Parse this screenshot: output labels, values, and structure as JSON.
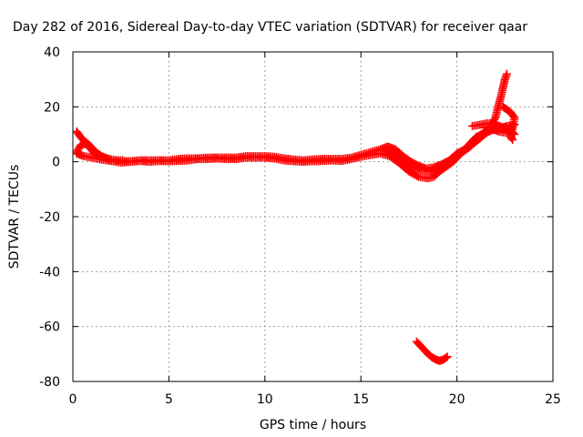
{
  "chart_data": {
    "type": "scatter",
    "title": "Day 282 of 2016, Sidereal Day-to-day VTEC variation (SDTVAR) for receiver qaar",
    "xlabel": "GPS time / hours",
    "ylabel": "SDTVAR / TECUs",
    "xlim": [
      0,
      25
    ],
    "ylim": [
      -80,
      40
    ],
    "xticks": [
      0,
      5,
      10,
      15,
      20,
      25
    ],
    "yticks": [
      -80,
      -60,
      -40,
      -20,
      0,
      20,
      40
    ],
    "grid": true,
    "legend": "none",
    "marker": "plus",
    "color": "#ff0000",
    "series": [
      {
        "values": [
          [
            0.2,
            11
          ],
          [
            0.4,
            9
          ],
          [
            0.6,
            7.5
          ],
          [
            0.8,
            6.5
          ],
          [
            1.0,
            5
          ],
          [
            1.2,
            3.5
          ],
          [
            1.5,
            2
          ],
          [
            1.8,
            1.2
          ],
          [
            2.2,
            0.5
          ],
          [
            2.6,
            0.5
          ]
        ]
      },
      {
        "values": [
          [
            0.2,
            3.5
          ],
          [
            0.4,
            6
          ],
          [
            0.6,
            6.5
          ],
          [
            0.8,
            6
          ],
          [
            1.0,
            4
          ],
          [
            1.2,
            2.5
          ],
          [
            1.5,
            1.5
          ],
          [
            2.0,
            0.8
          ],
          [
            2.5,
            0.2
          ],
          [
            3.0,
            0.2
          ],
          [
            3.5,
            0.5
          ],
          [
            4.0,
            0.5
          ],
          [
            4.5,
            0.5
          ],
          [
            5.0,
            0.5
          ],
          [
            5.5,
            1.0
          ],
          [
            6.0,
            1.2
          ],
          [
            6.5,
            1.2
          ],
          [
            7.0,
            1.5
          ],
          [
            7.5,
            1.5
          ],
          [
            8.0,
            1.5
          ],
          [
            8.5,
            1.5
          ],
          [
            9.0,
            2.0
          ],
          [
            9.5,
            2.0
          ],
          [
            10.0,
            2.0
          ],
          [
            10.5,
            1.8
          ],
          [
            11.0,
            1.2
          ],
          [
            11.5,
            0.8
          ],
          [
            12.0,
            0.5
          ],
          [
            12.5,
            0.8
          ],
          [
            13.0,
            1.0
          ],
          [
            13.5,
            1.0
          ],
          [
            14.0,
            1.0
          ],
          [
            14.5,
            1.5
          ],
          [
            15.0,
            2.5
          ],
          [
            15.5,
            3.5
          ],
          [
            16.0,
            4.5
          ],
          [
            16.4,
            5.5
          ],
          [
            16.8,
            4.5
          ],
          [
            17.2,
            2.0
          ],
          [
            17.6,
            0
          ],
          [
            18.0,
            -1.5
          ],
          [
            18.4,
            -2.5
          ],
          [
            18.8,
            -2
          ],
          [
            19.2,
            -1
          ],
          [
            19.6,
            0.5
          ],
          [
            20.0,
            3
          ],
          [
            20.4,
            4.5
          ],
          [
            20.8,
            6.5
          ],
          [
            21.2,
            8.5
          ],
          [
            21.6,
            11
          ],
          [
            22.0,
            16
          ],
          [
            22.3,
            24
          ],
          [
            22.5,
            30
          ],
          [
            22.6,
            32
          ]
        ]
      },
      {
        "values": [
          [
            0.2,
            3
          ],
          [
            0.6,
            2
          ],
          [
            1.0,
            1.5
          ],
          [
            1.5,
            0.8
          ],
          [
            2.0,
            0.3
          ],
          [
            2.5,
            -0.3
          ],
          [
            3.0,
            0.0
          ],
          [
            3.5,
            0.3
          ],
          [
            4.0,
            0.0
          ],
          [
            4.5,
            0.3
          ],
          [
            5.0,
            0.2
          ],
          [
            5.5,
            0.3
          ],
          [
            6.0,
            0.5
          ],
          [
            6.5,
            1.0
          ],
          [
            7.0,
            1.0
          ],
          [
            7.5,
            1.2
          ],
          [
            8.0,
            1.0
          ],
          [
            8.5,
            1.0
          ],
          [
            9.0,
            1.5
          ],
          [
            9.5,
            1.5
          ],
          [
            10.0,
            1.5
          ],
          [
            10.5,
            1.2
          ],
          [
            11.0,
            0.5
          ],
          [
            11.5,
            0.2
          ],
          [
            12.0,
            0.0
          ],
          [
            12.5,
            0.2
          ],
          [
            13.0,
            0.3
          ],
          [
            13.5,
            0.5
          ],
          [
            14.0,
            0.3
          ],
          [
            14.5,
            1.0
          ],
          [
            15.0,
            1.8
          ],
          [
            15.5,
            2.5
          ],
          [
            16.0,
            3.0
          ],
          [
            16.5,
            2.0
          ],
          [
            17.0,
            -0.5
          ],
          [
            17.5,
            -3.5
          ],
          [
            18.0,
            -5.5
          ],
          [
            18.5,
            -6
          ],
          [
            18.8,
            -5.5
          ],
          [
            19.0,
            -4
          ],
          [
            19.4,
            -2
          ],
          [
            19.8,
            0
          ],
          [
            20.2,
            3
          ],
          [
            20.6,
            6
          ],
          [
            21.0,
            9
          ],
          [
            21.4,
            10.5
          ],
          [
            21.8,
            11.5
          ],
          [
            22.2,
            12
          ],
          [
            22.6,
            13
          ],
          [
            23.0,
            13.5
          ]
        ]
      },
      {
        "values": [
          [
            16.2,
            4.5
          ],
          [
            16.6,
            3.5
          ],
          [
            17.0,
            1.5
          ],
          [
            17.4,
            -0.5
          ],
          [
            17.8,
            -2
          ],
          [
            18.2,
            -3
          ],
          [
            18.6,
            -3.5
          ],
          [
            19.0,
            -2.5
          ],
          [
            19.4,
            -1
          ],
          [
            19.8,
            0.5
          ],
          [
            20.2,
            3
          ],
          [
            20.6,
            5
          ],
          [
            21.0,
            7.5
          ],
          [
            21.4,
            10
          ],
          [
            21.8,
            11.5
          ],
          [
            22.2,
            12.5
          ]
        ]
      },
      {
        "values": [
          [
            20.8,
            13
          ],
          [
            21.2,
            13.5
          ],
          [
            21.6,
            14
          ],
          [
            22.0,
            13.5
          ],
          [
            22.4,
            12.5
          ],
          [
            22.8,
            11.5
          ],
          [
            23.0,
            10
          ],
          [
            22.6,
            10.5
          ],
          [
            22.2,
            11
          ],
          [
            21.8,
            12
          ],
          [
            21.4,
            12.5
          ]
        ]
      },
      {
        "values": [
          [
            22.4,
            20
          ],
          [
            22.6,
            19
          ],
          [
            22.8,
            18
          ],
          [
            23.0,
            16
          ],
          [
            22.8,
            9
          ],
          [
            22.9,
            8
          ]
        ]
      },
      {
        "values": [
          [
            17.9,
            -65.5
          ],
          [
            18.1,
            -67
          ],
          [
            18.3,
            -68.5
          ],
          [
            18.5,
            -70
          ],
          [
            18.7,
            -71.2
          ],
          [
            18.9,
            -72
          ],
          [
            19.1,
            -72.5
          ],
          [
            19.3,
            -72
          ],
          [
            19.5,
            -71
          ]
        ]
      }
    ]
  }
}
